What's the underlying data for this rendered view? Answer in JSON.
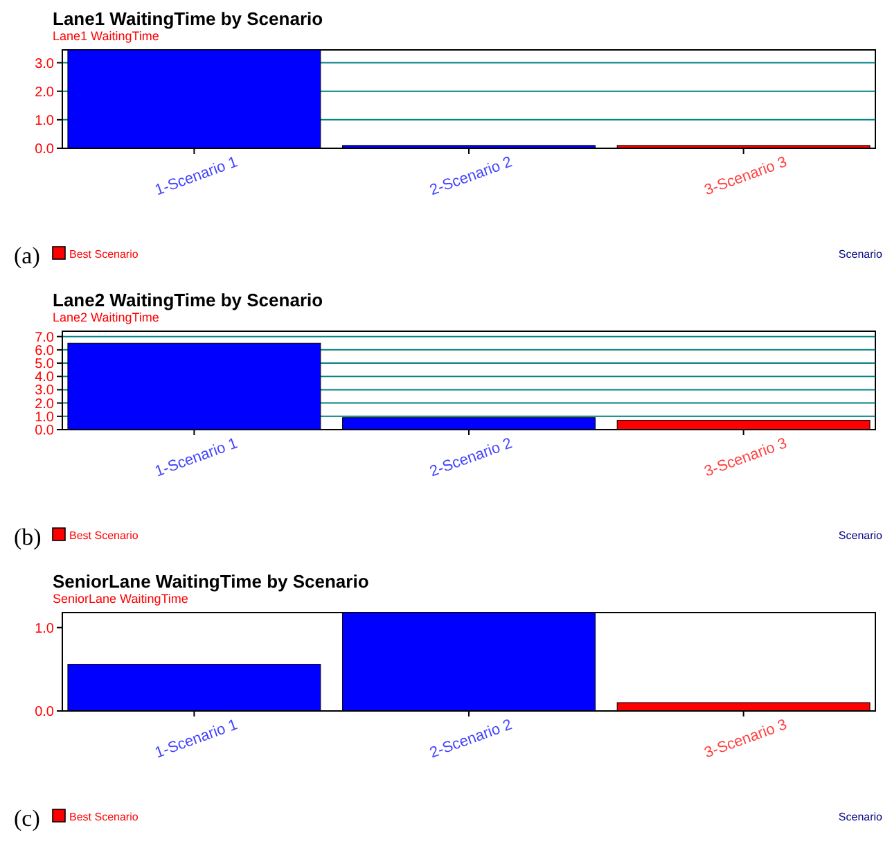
{
  "chart_data": [
    {
      "type": "bar",
      "title": "Lane1 WaitingTime by Scenario",
      "ylabel": "Lane1 WaitingTime",
      "xlabel": "Scenario",
      "categories": [
        "1-Scenario 1",
        "2-Scenario 2",
        "3-Scenario 3"
      ],
      "stacked": true,
      "series": [
        {
          "color": "#0000ff",
          "values": [
            3.45,
            0.1,
            null
          ]
        },
        {
          "name": "Best Scenario",
          "color": "#ff0000",
          "values": [
            null,
            null,
            0.1
          ]
        }
      ],
      "ylim": [
        0,
        3.45
      ],
      "yticks": [
        {
          "value": 0,
          "label": "0.0"
        },
        {
          "value": 1,
          "label": "1.0"
        },
        {
          "value": 2,
          "label": "2.0"
        },
        {
          "value": 3,
          "label": "3.0"
        }
      ],
      "grid": "y",
      "legend": "bottom left",
      "annotations": [
        "(a)"
      ]
    },
    {
      "type": "bar",
      "title": "Lane2 WaitingTime by Scenario",
      "ylabel": "Lane2 WaitingTime",
      "xlabel": "Scenario",
      "categories": [
        "1-Scenario 1",
        "2-Scenario 2",
        "3-Scenario 3"
      ],
      "stacked": true,
      "series": [
        {
          "color": "#0000ff",
          "values": [
            6.5,
            0.9,
            null
          ]
        },
        {
          "name": "Best Scenario",
          "color": "#ff0000",
          "values": [
            null,
            null,
            0.7
          ]
        }
      ],
      "ylim": [
        0,
        7.4
      ],
      "yticks": [
        {
          "value": 0,
          "label": "0.0"
        },
        {
          "value": 1,
          "label": "1.0"
        },
        {
          "value": 2,
          "label": "2.0"
        },
        {
          "value": 3,
          "label": "3.0"
        },
        {
          "value": 4,
          "label": "4.0"
        },
        {
          "value": 5,
          "label": "5.0"
        },
        {
          "value": 6,
          "label": "6.0"
        },
        {
          "value": 7,
          "label": "7.0"
        }
      ],
      "grid": "y",
      "legend": "bottom left",
      "annotations": [
        "(b)"
      ]
    },
    {
      "type": "bar",
      "title": "SeniorLane WaitingTime by Scenario",
      "ylabel": "SeniorLane WaitingTime",
      "xlabel": "Scenario",
      "categories": [
        "1-Scenario 1",
        "2-Scenario 2",
        "3-Scenario 3"
      ],
      "stacked": true,
      "series": [
        {
          "color": "#0000ff",
          "values": [
            0.56,
            1.18,
            null
          ]
        },
        {
          "name": "Best Scenario",
          "color": "#ff0000",
          "values": [
            null,
            null,
            0.1
          ]
        }
      ],
      "ylim": [
        0,
        1.18
      ],
      "yticks": [
        {
          "value": 0,
          "label": "0.0"
        },
        {
          "value": 1,
          "label": "1.0"
        }
      ],
      "legend": "bottom left",
      "annotations": [
        "(c)"
      ]
    }
  ]
}
